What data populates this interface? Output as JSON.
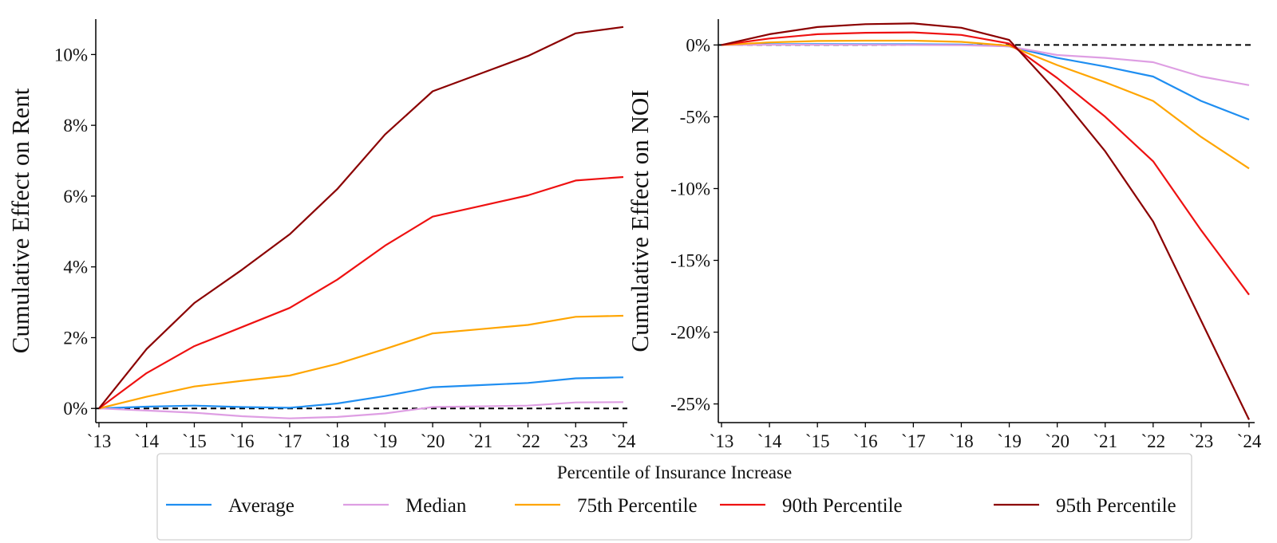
{
  "chart_data": [
    {
      "type": "line",
      "title": "",
      "xlabel": "",
      "ylabel": "Cumulative Effect on Rent",
      "x": [
        "`13",
        "`14",
        "`15",
        "`16",
        "`17",
        "`18",
        "`19",
        "`20",
        "`21",
        "`22",
        "`23",
        "`24"
      ],
      "ylim": [
        -0.4,
        11.0
      ],
      "yticks": [
        0,
        2,
        4,
        6,
        8,
        10
      ],
      "ytick_labels": [
        "0%",
        "2%",
        "4%",
        "6%",
        "8%",
        "10%"
      ],
      "reference_line": {
        "y": 0,
        "style": "dashed",
        "color": "#000000"
      },
      "grid": false,
      "series": [
        {
          "name": "Average",
          "color": "#1f8ef1",
          "values": [
            0,
            0.05,
            0.08,
            0.04,
            0.02,
            0.14,
            0.35,
            0.6,
            0.66,
            0.72,
            0.85,
            0.88
          ]
        },
        {
          "name": "Median",
          "color": "#de9ee3",
          "values": [
            0,
            -0.06,
            -0.12,
            -0.22,
            -0.28,
            -0.24,
            -0.14,
            0.04,
            0.06,
            0.08,
            0.17,
            0.18
          ]
        },
        {
          "name": "75th Percentile",
          "color": "#ffa500",
          "values": [
            0,
            0.33,
            0.62,
            0.78,
            0.93,
            1.26,
            1.68,
            2.12,
            2.24,
            2.36,
            2.59,
            2.62
          ]
        },
        {
          "name": "90th Percentile",
          "color": "#ee1111",
          "values": [
            0,
            1.0,
            1.76,
            2.3,
            2.84,
            3.64,
            4.6,
            5.42,
            5.72,
            6.02,
            6.44,
            6.54
          ]
        },
        {
          "name": "95th Percentile",
          "color": "#8b0000",
          "values": [
            0,
            1.68,
            2.98,
            3.92,
            4.92,
            6.2,
            7.74,
            8.96,
            9.46,
            9.96,
            10.6,
            10.78
          ]
        }
      ]
    },
    {
      "type": "line",
      "title": "",
      "xlabel": "",
      "ylabel": "Cumulative Effect on NOI",
      "x": [
        "`13",
        "`14",
        "`15",
        "`16",
        "`17",
        "`18",
        "`19",
        "`20",
        "`21",
        "`22",
        "`23",
        "`24"
      ],
      "ylim": [
        -26.3,
        1.8
      ],
      "yticks": [
        0,
        -5,
        -10,
        -15,
        -20,
        -25
      ],
      "ytick_labels": [
        "0%",
        "-5%",
        "-10%",
        "-15%",
        "-20%",
        "-25%"
      ],
      "reference_line": {
        "y": 0,
        "style": "dashed",
        "color": "#000000"
      },
      "grid": false,
      "series": [
        {
          "name": "Average",
          "color": "#1f8ef1",
          "values": [
            0,
            0.05,
            0.06,
            0.05,
            0.05,
            0.03,
            -0.1,
            -0.9,
            -1.5,
            -2.2,
            -3.9,
            -5.2
          ]
        },
        {
          "name": "Median",
          "color": "#de9ee3",
          "values": [
            0,
            0.02,
            0.02,
            0.01,
            0.0,
            -0.01,
            -0.1,
            -0.7,
            -0.9,
            -1.2,
            -2.2,
            -2.8
          ]
        },
        {
          "name": "75th Percentile",
          "color": "#ffa500",
          "values": [
            0,
            0.18,
            0.28,
            0.3,
            0.3,
            0.22,
            -0.05,
            -1.4,
            -2.6,
            -3.9,
            -6.4,
            -8.6
          ]
        },
        {
          "name": "90th Percentile",
          "color": "#ee1111",
          "values": [
            0,
            0.45,
            0.75,
            0.85,
            0.88,
            0.7,
            0.1,
            -2.3,
            -5.0,
            -8.1,
            -12.9,
            -17.4
          ]
        },
        {
          "name": "95th Percentile",
          "color": "#8b0000",
          "values": [
            0,
            0.75,
            1.25,
            1.45,
            1.5,
            1.2,
            0.35,
            -3.3,
            -7.4,
            -12.3,
            -19.2,
            -26.1
          ]
        }
      ]
    }
  ],
  "legend": {
    "title": "Percentile of Insurance Increase",
    "placement": "bottom-center",
    "entries": [
      "Average",
      "Median",
      "75th Percentile",
      "90th Percentile",
      "95th Percentile"
    ]
  }
}
